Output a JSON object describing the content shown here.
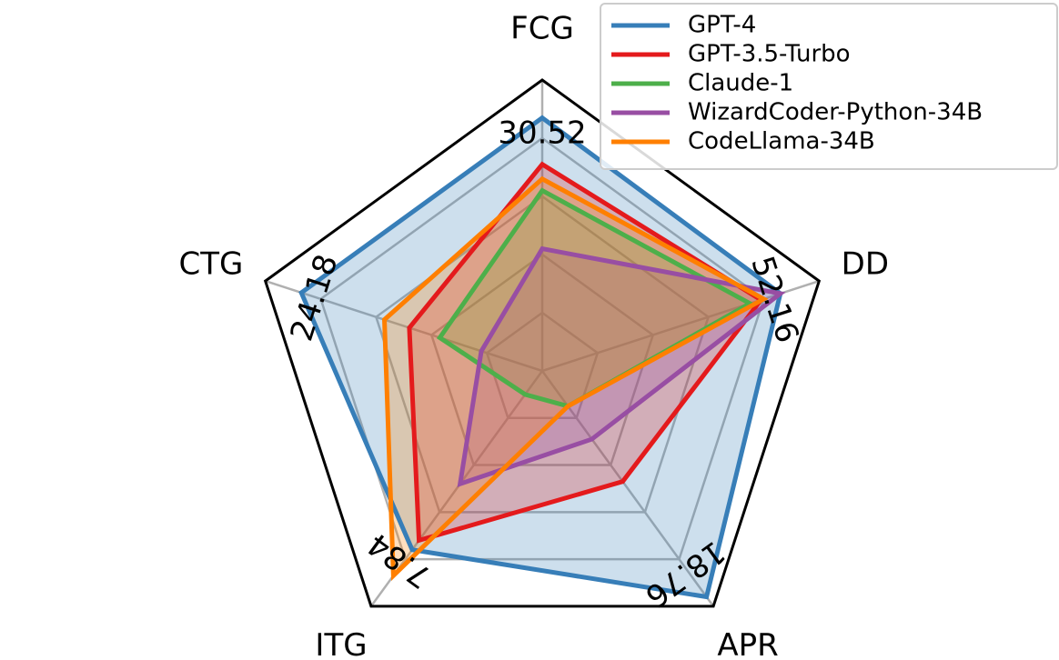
{
  "chart_data": {
    "type": "radar",
    "axes": [
      "FCG",
      "DD",
      "APR",
      "ITG",
      "CTG"
    ],
    "axis_max_labels": [
      "30.52",
      "52.16",
      "18.76",
      "7.84",
      "24.18"
    ],
    "axis_max_values": [
      30.52,
      52.16,
      18.76,
      7.84,
      24.18
    ],
    "grid_levels": 5,
    "grid": true,
    "legend_position": "top-right",
    "series": [
      {
        "name": "GPT-4",
        "color": "#377eb8",
        "fill": true,
        "values": [
          0.87,
          0.86,
          0.96,
          0.76,
          0.87
        ]
      },
      {
        "name": "GPT-3.5-Turbo",
        "color": "#e41a1c",
        "fill": true,
        "values": [
          0.71,
          0.79,
          0.47,
          0.72,
          0.48
        ]
      },
      {
        "name": "Claude-1",
        "color": "#4daf4a",
        "fill": true,
        "values": [
          0.62,
          0.75,
          0.15,
          0.1,
          0.37
        ]
      },
      {
        "name": "WizardCoder-Python-34B",
        "color": "#984ea3",
        "fill": true,
        "values": [
          0.42,
          0.86,
          0.29,
          0.48,
          0.22
        ]
      },
      {
        "name": "CodeLlama-34B",
        "color": "#ff7f00",
        "fill": true,
        "values": [
          0.66,
          0.8,
          0.15,
          0.87,
          0.57
        ]
      }
    ]
  }
}
